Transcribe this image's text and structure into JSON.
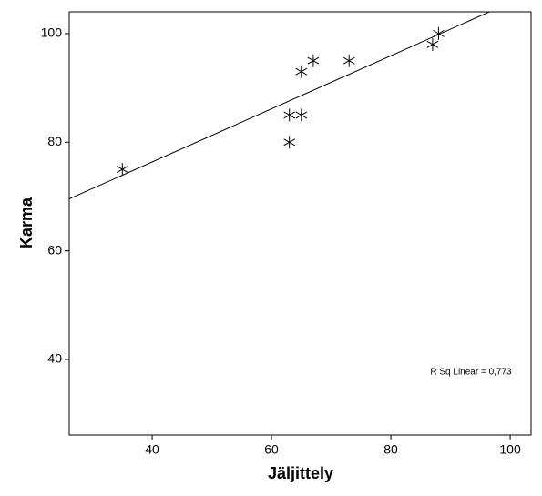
{
  "chart_data": {
    "type": "scatter",
    "x_label": "Jäljittely",
    "y_label": "Karma",
    "x": [
      35,
      63,
      63,
      65,
      65,
      67,
      73,
      87,
      88
    ],
    "y": [
      75,
      80,
      85,
      85,
      93,
      95,
      95,
      98,
      100
    ],
    "color": "#000000",
    "xlim": [
      26.1,
      103.5
    ],
    "ylim": [
      26.1,
      104
    ],
    "xticks": [
      40,
      60,
      80,
      100
    ],
    "yticks": [
      40,
      60,
      80,
      100
    ],
    "fit_line": {
      "intercept": 56.8,
      "slope": 0.489
    },
    "annotation": "R Sq Linear = 0,773"
  }
}
